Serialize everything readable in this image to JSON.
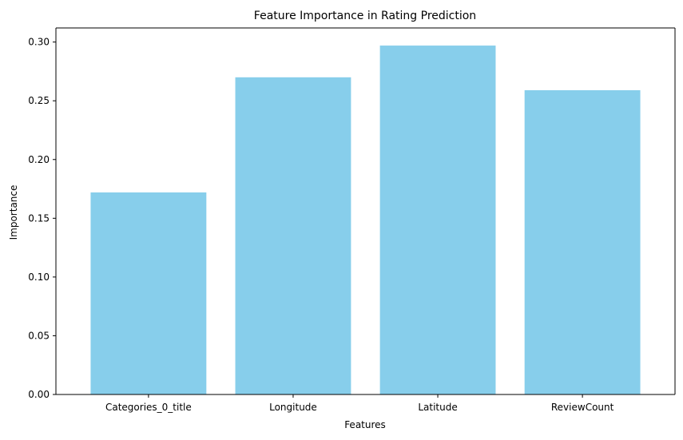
{
  "chart_data": {
    "type": "bar",
    "title": "Feature Importance in Rating Prediction",
    "xlabel": "Features",
    "ylabel": "Importance",
    "categories": [
      "Categories_0_title",
      "Longitude",
      "Latitude",
      "ReviewCount"
    ],
    "values": [
      0.172,
      0.27,
      0.297,
      0.259
    ],
    "ylim": [
      0,
      0.312
    ],
    "yticks": [
      0.0,
      0.05,
      0.1,
      0.15,
      0.2,
      0.25,
      0.3
    ],
    "ytick_labels": [
      "0.00",
      "0.05",
      "0.10",
      "0.15",
      "0.20",
      "0.25",
      "0.30"
    ],
    "grid": false,
    "legend": "none",
    "bar_color": "#87ceeb",
    "axis_color": "#000000"
  }
}
